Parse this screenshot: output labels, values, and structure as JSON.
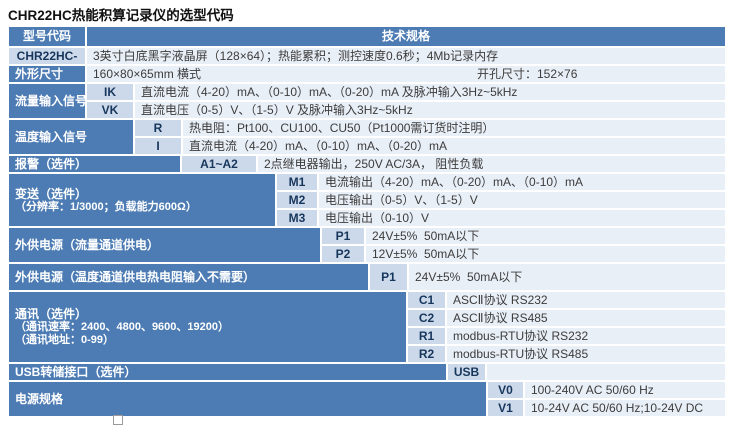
{
  "page": {
    "title": "CHR22HC热能积算记录仪的选型代码"
  },
  "table": {
    "header": {
      "model_col": "型号代码",
      "spec_col": "技术规格"
    },
    "model_row": {
      "code": "CHR22HC-",
      "spec": "3英寸白底黑字液晶屏（128×64）；热能累积；测控速度0.6秒；4Mb记录内存"
    },
    "dimensions_row": {
      "label": "外形尺寸",
      "spec_left": "160×80×65mm 横式",
      "spec_right": "开孔尺寸：152×76"
    },
    "flow_input": {
      "label": "流量输入信号",
      "rows": [
        {
          "code": "IK",
          "spec": "直流电流（4-20）mA、（0-10）mA、（0-20）mA 及脉冲输入3Hz~5kHz"
        },
        {
          "code": "VK",
          "spec": "直流电压（0-5）V、（1-5）V 及脉冲输入3Hz~5kHz"
        }
      ]
    },
    "temp_input": {
      "label": "温度输入信号",
      "rows": [
        {
          "code": "R",
          "spec": "热电阻：Pt100、CU100、CU50（Pt1000需订货时注明）"
        },
        {
          "code": "I",
          "spec": "直流电流（4-20）mA、（0-10）mA、（0-20）mA"
        }
      ]
    },
    "alarm": {
      "label": "报警（选件）",
      "rows": [
        {
          "code": "A1~A2",
          "spec": "2点继电器输出，250V AC/3A， 阻性负载"
        }
      ]
    },
    "transmit": {
      "label_line1": "变送（选件）",
      "label_line2": "（分辨率：1/3000；负载能力600Ω）",
      "rows": [
        {
          "code": "M1",
          "spec": "电流输出（4-20）mA、（0-20）mA、（0-10）mA"
        },
        {
          "code": "M2",
          "spec": "电压输出（0-5）V、（1-5）V"
        },
        {
          "code": "M3",
          "spec": "电压输出（0-10）V"
        }
      ]
    },
    "ext_power_flow": {
      "label": "外供电源（流量通道供电）",
      "rows": [
        {
          "code": "P1",
          "spec": "24V±5%  50mA以下"
        },
        {
          "code": "P2",
          "spec": "12V±5%  50mA以下"
        }
      ]
    },
    "ext_power_temp": {
      "label": "外供电源（温度通道供电热电阻输入不需要）",
      "rows": [
        {
          "code": "P1",
          "spec": "24V±5%  50mA以下"
        }
      ]
    },
    "comm": {
      "label_line1": "通讯（选件）",
      "label_line2": "（通讯速率：2400、4800、9600、19200）",
      "label_line3": "（通讯地址：0-99）",
      "rows": [
        {
          "code": "C1",
          "spec": "ASCⅡ协议 RS232"
        },
        {
          "code": "C2",
          "spec": "ASCⅡ协议 RS485"
        },
        {
          "code": "R1",
          "spec": "modbus-RTU协议 RS232"
        },
        {
          "code": "R2",
          "spec": "modbus-RTU协议 RS485"
        }
      ]
    },
    "usb": {
      "label": "USB转储接口（选件）",
      "rows": [
        {
          "code": "USB",
          "spec": ""
        }
      ]
    },
    "power_spec": {
      "label": "电源规格",
      "rows": [
        {
          "code": "V0",
          "spec": "100-240V AC 50/60 Hz"
        },
        {
          "code": "V1",
          "spec": "10-24V AC 50/60 Hz;10-24V DC"
        }
      ]
    }
  },
  "colors": {
    "label_bg": "#4d7cb4",
    "label_text": "#ffffff",
    "code_bg": "#ccd9ea",
    "code_text": "#17365c",
    "spec_bg": "#e9eff7",
    "spec_text": "#3c3c3c"
  }
}
